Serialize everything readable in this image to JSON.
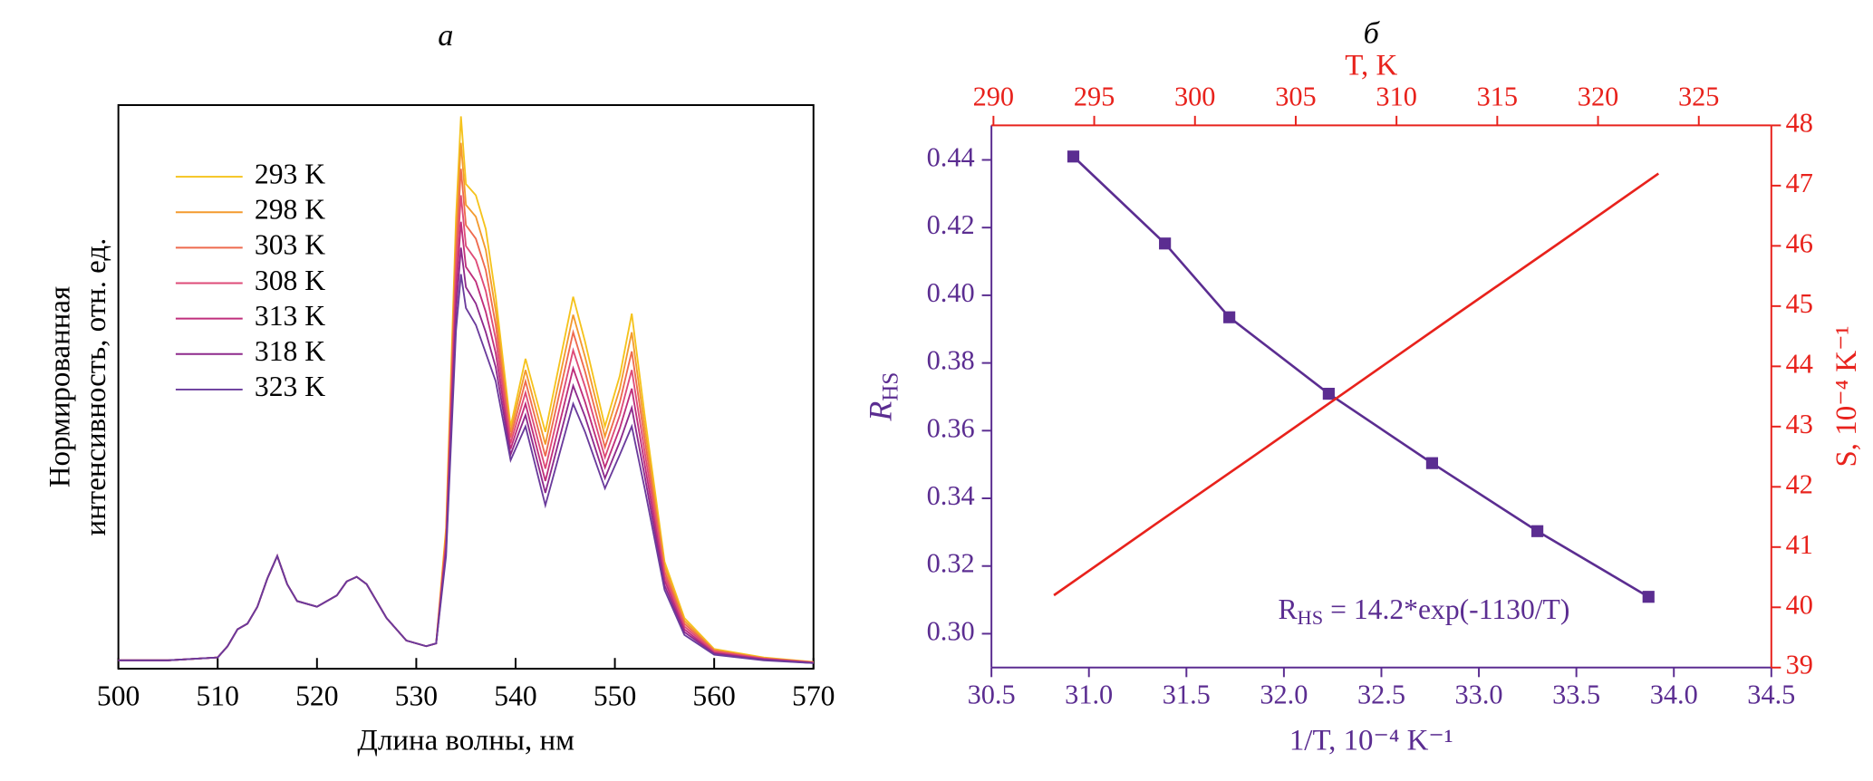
{
  "chart_data": [
    {
      "type": "line",
      "title": "а",
      "x": [
        500,
        505,
        510,
        511,
        512,
        513,
        514,
        515,
        516,
        517,
        518,
        520,
        522,
        523,
        524,
        525,
        527,
        529,
        531,
        532,
        533,
        534,
        534.5,
        535,
        536,
        537,
        538,
        539.5,
        541,
        543,
        545.8,
        547,
        549,
        550.5,
        551.7,
        553,
        555,
        557,
        560,
        565,
        570
      ],
      "series": [
        {
          "name": "293 K",
          "color": "#f5c31c",
          "values": [
            0.015,
            0.015,
            0.02,
            0.04,
            0.07,
            0.08,
            0.11,
            0.16,
            0.2,
            0.15,
            0.12,
            0.11,
            0.13,
            0.155,
            0.163,
            0.15,
            0.09,
            0.05,
            0.04,
            0.045,
            0.25,
            0.8,
            0.98,
            0.86,
            0.84,
            0.78,
            0.66,
            0.43,
            0.55,
            0.42,
            0.66,
            0.58,
            0.43,
            0.52,
            0.63,
            0.45,
            0.19,
            0.09,
            0.035,
            0.02,
            0.012
          ]
        },
        {
          "name": "298 K",
          "color": "#f39a2e",
          "values": [
            0.015,
            0.015,
            0.02,
            0.04,
            0.07,
            0.08,
            0.11,
            0.16,
            0.2,
            0.15,
            0.12,
            0.11,
            0.13,
            0.155,
            0.163,
            0.15,
            0.09,
            0.05,
            0.04,
            0.045,
            0.242,
            0.767,
            0.933,
            0.823,
            0.802,
            0.743,
            0.635,
            0.42,
            0.53,
            0.398,
            0.628,
            0.553,
            0.412,
            0.497,
            0.597,
            0.428,
            0.182,
            0.085,
            0.033,
            0.019,
            0.012
          ]
        },
        {
          "name": "303 K",
          "color": "#ee6a4e",
          "values": [
            0.015,
            0.015,
            0.02,
            0.04,
            0.07,
            0.08,
            0.11,
            0.16,
            0.2,
            0.15,
            0.12,
            0.11,
            0.13,
            0.155,
            0.163,
            0.15,
            0.09,
            0.05,
            0.04,
            0.045,
            0.233,
            0.733,
            0.887,
            0.787,
            0.763,
            0.707,
            0.61,
            0.41,
            0.51,
            0.377,
            0.597,
            0.527,
            0.393,
            0.473,
            0.563,
            0.407,
            0.173,
            0.08,
            0.032,
            0.018,
            0.011
          ]
        },
        {
          "name": "308 K",
          "color": "#de4b78",
          "values": [
            0.015,
            0.015,
            0.02,
            0.04,
            0.07,
            0.08,
            0.11,
            0.16,
            0.2,
            0.15,
            0.12,
            0.11,
            0.13,
            0.155,
            0.163,
            0.15,
            0.09,
            0.05,
            0.04,
            0.045,
            0.225,
            0.7,
            0.84,
            0.75,
            0.725,
            0.67,
            0.585,
            0.4,
            0.49,
            0.355,
            0.565,
            0.5,
            0.375,
            0.45,
            0.53,
            0.385,
            0.165,
            0.075,
            0.03,
            0.018,
            0.011
          ]
        },
        {
          "name": "313 K",
          "color": "#bf2f7c",
          "values": [
            0.015,
            0.015,
            0.02,
            0.04,
            0.07,
            0.08,
            0.11,
            0.16,
            0.2,
            0.15,
            0.12,
            0.11,
            0.13,
            0.155,
            0.163,
            0.15,
            0.09,
            0.05,
            0.04,
            0.045,
            0.217,
            0.667,
            0.793,
            0.713,
            0.687,
            0.633,
            0.56,
            0.39,
            0.47,
            0.333,
            0.533,
            0.473,
            0.357,
            0.427,
            0.497,
            0.363,
            0.157,
            0.07,
            0.028,
            0.017,
            0.011
          ]
        },
        {
          "name": "318 K",
          "color": "#8e2a8c",
          "values": [
            0.015,
            0.015,
            0.02,
            0.04,
            0.07,
            0.08,
            0.11,
            0.16,
            0.2,
            0.15,
            0.12,
            0.11,
            0.13,
            0.155,
            0.163,
            0.15,
            0.09,
            0.05,
            0.04,
            0.045,
            0.208,
            0.633,
            0.747,
            0.677,
            0.648,
            0.597,
            0.535,
            0.38,
            0.45,
            0.312,
            0.502,
            0.447,
            0.338,
            0.403,
            0.463,
            0.342,
            0.148,
            0.065,
            0.027,
            0.016,
            0.01
          ]
        },
        {
          "name": "323 K",
          "color": "#6a3b9c",
          "values": [
            0.015,
            0.015,
            0.02,
            0.04,
            0.07,
            0.08,
            0.11,
            0.16,
            0.2,
            0.15,
            0.12,
            0.11,
            0.13,
            0.155,
            0.163,
            0.15,
            0.09,
            0.05,
            0.04,
            0.045,
            0.2,
            0.6,
            0.7,
            0.64,
            0.61,
            0.56,
            0.51,
            0.37,
            0.43,
            0.29,
            0.47,
            0.42,
            0.32,
            0.38,
            0.43,
            0.32,
            0.14,
            0.06,
            0.025,
            0.015,
            0.01
          ]
        }
      ],
      "xlim": [
        500,
        570
      ],
      "xticks": [
        500,
        510,
        520,
        530,
        540,
        550,
        560,
        570
      ],
      "ylim": [
        0,
        1
      ],
      "xlabel": "Длина волны, нм",
      "ylabel": [
        "Нормированная",
        "интенсивность, отн. ед."
      ],
      "legend": "upper left"
    },
    {
      "type": "scatter",
      "title": "б",
      "series": [
        {
          "color": "#5b2d91",
          "mode": "markers+line",
          "marker": "square",
          "x": [
            30.92,
            31.39,
            31.72,
            32.23,
            32.76,
            33.3,
            33.87
          ],
          "values": [
            0.441,
            0.4153,
            0.3935,
            0.3709,
            0.3504,
            0.3303,
            0.3109
          ]
        },
        {
          "color": "#e8221c",
          "mode": "line",
          "axis": "y2",
          "xaxis": "x2",
          "x": [
            293,
            298,
            303,
            308,
            313,
            318,
            323
          ],
          "values": [
            40.2,
            41.37,
            42.53,
            43.7,
            44.87,
            46.03,
            47.2
          ]
        }
      ],
      "xlim": [
        30.5,
        34.5
      ],
      "xticks": [
        30.5,
        {
          "value": 31,
          "label": "31.0"
        },
        31.5,
        {
          "value": 32,
          "label": "32.0"
        },
        32.5,
        {
          "value": 33,
          "label": "33.0"
        },
        33.5,
        {
          "value": 34,
          "label": "34.0"
        },
        34.5
      ],
      "x2lim": [
        289.9,
        328.6
      ],
      "x2ticks": [
        290,
        295,
        300,
        305,
        310,
        315,
        320,
        325
      ],
      "ylim": [
        0.29,
        0.4502
      ],
      "yticks": [
        {
          "value": 0.3,
          "label": "0.30"
        },
        0.32,
        0.34,
        0.36,
        0.38,
        {
          "value": 0.4,
          "label": "0.40"
        },
        0.42,
        0.44
      ],
      "y2lim": [
        39,
        48
      ],
      "y2ticks": [
        39,
        40,
        41,
        42,
        43,
        44,
        45,
        46,
        47,
        48
      ],
      "xlabel": "1/T, 10⁻⁴ K⁻¹",
      "x2label": "T, K",
      "ylabel": [
        "R",
        "HS"
      ],
      "y2label": "S, 10⁻⁴ K⁻¹",
      "annotation": [
        "R",
        "HS",
        " = 14.2*exp(-1130/T)"
      ],
      "colors": {
        "primary": "#5b2d91",
        "secondary": "#e8221c"
      }
    }
  ]
}
